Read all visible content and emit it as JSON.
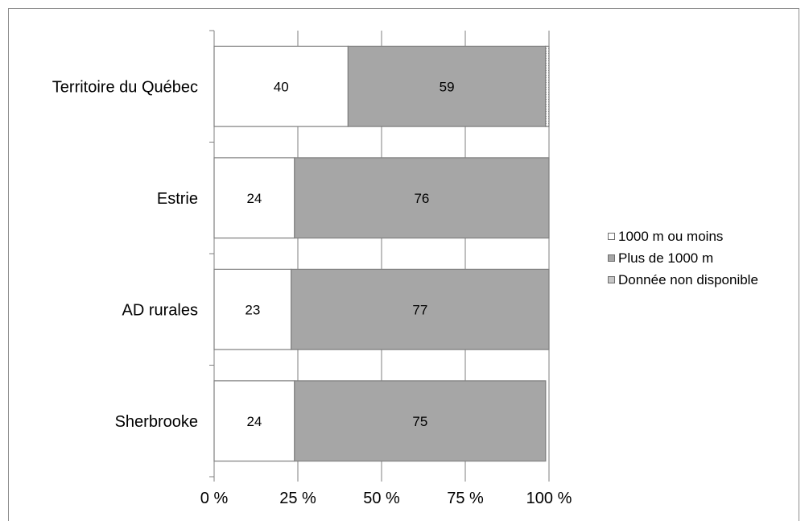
{
  "chart_data": {
    "type": "bar",
    "orientation": "horizontal",
    "stacked": "percent",
    "categories": [
      "Territoire du Québec",
      "Estrie",
      "AD rurales",
      "Sherbrooke"
    ],
    "series": [
      {
        "name": "1000 m ou moins",
        "values": [
          40,
          24,
          23,
          24
        ],
        "color": "#ffffff"
      },
      {
        "name": "Plus de 1000 m",
        "values": [
          59,
          76,
          77,
          75
        ],
        "color": "#a6a6a6"
      },
      {
        "name": "Donnée non disponible",
        "values": [
          1,
          0,
          0,
          0
        ],
        "color": "#d9d9d9"
      }
    ],
    "xticks": [
      "0 %",
      "25 %",
      "50 %",
      "75 %",
      "100 %"
    ],
    "xlim": [
      0,
      100
    ],
    "grid": "vertical",
    "legend_position": "right"
  }
}
